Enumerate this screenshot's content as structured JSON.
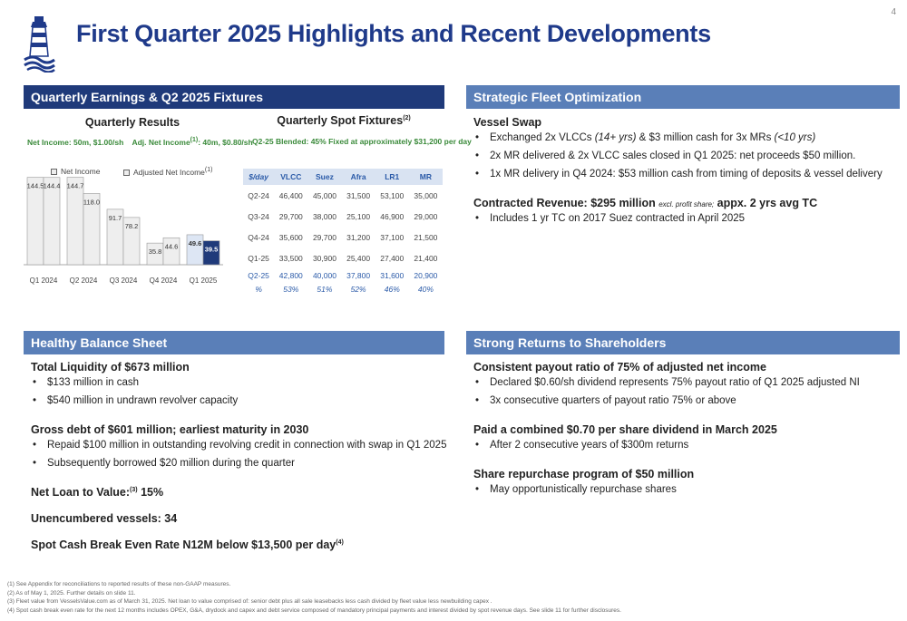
{
  "page_number": "4",
  "title": "First Quarter 2025 Highlights and Recent Developments",
  "sections": {
    "earnings": {
      "header": "Quarterly Earnings & Q2 2025 Fixtures",
      "results_title": "Quarterly Results",
      "net_income_line": "Net Income: 50m, $1.00/sh",
      "adj_income_line_pre": "Adj. Net Income",
      "adj_income_sup": "(1)",
      "adj_income_line_post": ": 40m, $0.80/sh",
      "fixtures_title": "Quarterly Spot Fixtures",
      "fixtures_sup": "(2)",
      "fixtures_line": "Q2-25 Blended: 45% Fixed at approximately $31,200 per day"
    },
    "fleet": {
      "header": "Strategic Fleet Optimization",
      "h1": "Vessel Swap",
      "b1_pre": "Exchanged 2x VLCCs ",
      "b1_it1": "(14+ yrs)",
      "b1_mid": " & $3 million cash for 3x MRs ",
      "b1_it2": "(<10 yrs)",
      "b2": "2x MR delivered & 2x VLCC sales closed in Q1 2025: net proceeds $50 million.",
      "b3": "1x MR delivery in Q4 2024: $53 million cash from timing of deposits & vessel delivery",
      "h2_pre": "Contracted Revenue: $295 million ",
      "h2_small": "excl. profit share;",
      "h2_post": " appx. 2 yrs avg TC",
      "b4": "Includes 1 yr TC on 2017 Suez contracted in April 2025"
    },
    "balance": {
      "header": "Healthy Balance Sheet",
      "h1": "Total Liquidity of $673 million",
      "b1": "$133 million in cash",
      "b2": "$540 million in undrawn revolver capacity",
      "h2": "Gross debt of $601 million; earliest maturity in 2030",
      "b3": "Repaid $100 million in outstanding revolving credit in connection with swap in Q1 2025",
      "b4": "Subsequently borrowed $20 million during the quarter",
      "h3_pre": "Net Loan to Value:",
      "h3_sup": "(3)",
      "h3_post": " 15%",
      "h4": "Unencumbered vessels: 34",
      "h5_pre": "Spot Cash Break Even Rate N12M below $13,500 per day",
      "h5_sup": "(4)"
    },
    "returns": {
      "header": "Strong Returns to Shareholders",
      "h1": "Consistent payout ratio of 75% of adjusted net income",
      "b1": "Declared $0.60/sh dividend represents 75% payout ratio of Q1 2025 adjusted NI",
      "b2": "3x consecutive quarters of payout ratio 75% or above",
      "h2": "Paid a combined $0.70 per share dividend in March 2025",
      "b3": "After 2 consecutive years of $300m returns",
      "h3": "Share repurchase program of $50 million",
      "b4": "May opportunistically repurchase shares"
    }
  },
  "chart_data": {
    "type": "bar",
    "legend": [
      "Net Income",
      "Adjusted Net Income"
    ],
    "legend_sup": "(1)",
    "categories": [
      "Q1 2024",
      "Q2 2024",
      "Q3 2024",
      "Q4 2024",
      "Q1 2025"
    ],
    "series": [
      {
        "name": "Net Income",
        "values": [
          144.5,
          144.7,
          91.7,
          35.8,
          49.6
        ],
        "labels": [
          "144.5",
          "144.7",
          "91.7",
          "35.8",
          "49.6"
        ]
      },
      {
        "name": "Adjusted Net Income",
        "values": [
          144.4,
          118.0,
          78.2,
          44.6,
          39.5
        ],
        "labels": [
          "144.4",
          "118.0",
          "78.2",
          "44.6",
          "39.5"
        ]
      }
    ],
    "colors": {
      "bar": "#eeeeee",
      "highlight_ni": "#dde6f4",
      "highlight_adj": "#1f3a7a"
    }
  },
  "fixtures_table": {
    "columns": [
      "$/day",
      "VLCC",
      "Suez",
      "Afra",
      "LR1",
      "MR"
    ],
    "rows": [
      [
        "Q2-24",
        "46,400",
        "45,000",
        "31,500",
        "53,100",
        "35,000"
      ],
      [
        "Q3-24",
        "29,700",
        "38,000",
        "25,100",
        "46,900",
        "29,000"
      ],
      [
        "Q4-24",
        "35,600",
        "29,700",
        "31,200",
        "37,100",
        "21,500"
      ],
      [
        "Q1-25",
        "33,500",
        "30,900",
        "25,400",
        "27,400",
        "21,400"
      ],
      [
        "Q2-25",
        "42,800",
        "40,000",
        "37,800",
        "31,600",
        "20,900"
      ],
      [
        "%",
        "53%",
        "51%",
        "52%",
        "46%",
        "40%"
      ]
    ]
  },
  "footnotes": [
    "(1) See Appendix for reconciliations to reported results of these non-GAAP measures.",
    "(2) As of May 1, 2025. Further details on slide 11.",
    "(3) Fleet value from VesselsValue.com as of  March 31, 2025.  Net loan to value comprised of: senior debt plus all sale leasebacks less cash divided by fleet value less newbuilding capex .",
    "(4) Spot cash break even rate for the next 12 months includes OPEX, G&A, drydock and capex and debt service composed of mandatory principal payments and interest divided by spot revenue days. See slide 11 for further disclosures."
  ]
}
